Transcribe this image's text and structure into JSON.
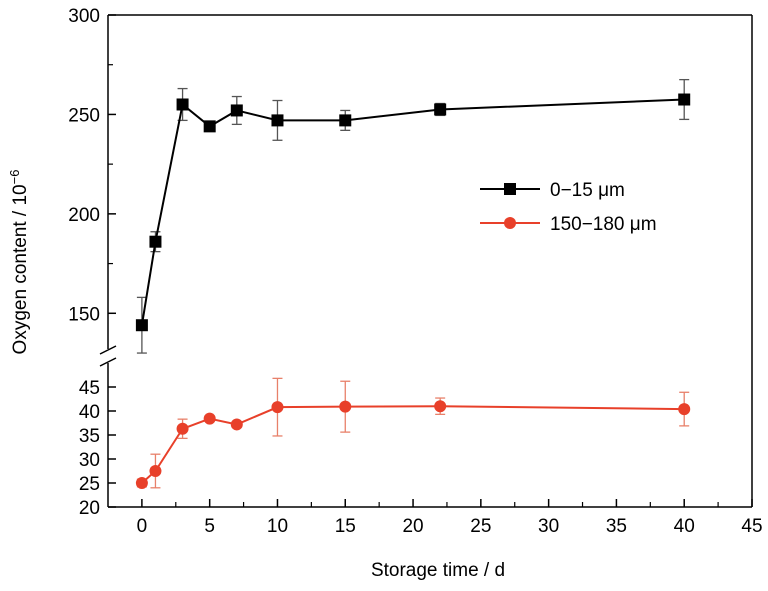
{
  "chart_data": {
    "type": "line",
    "xlabel": "Storage time / d",
    "ylabel": "Oxygen content / 10",
    "ylabel_exponent": "−6",
    "x_ticks": [
      "0",
      "5",
      "10",
      "15",
      "20",
      "25",
      "30",
      "35",
      "40",
      "45"
    ],
    "xlim": [
      -2.5,
      45
    ],
    "y_axis_break": true,
    "upper_panel": {
      "ylim": [
        125,
        300
      ],
      "y_ticks": [
        "150",
        "200",
        "250",
        "300"
      ]
    },
    "lower_panel": {
      "ylim": [
        20,
        50
      ],
      "y_ticks": [
        "20",
        "25",
        "30",
        "35",
        "40",
        "45"
      ]
    },
    "series": [
      {
        "name": "0−15 μm",
        "panel": "upper",
        "marker": "square",
        "color": "#000000",
        "x": [
          0,
          1,
          3,
          5,
          7,
          10,
          15,
          22,
          40
        ],
        "y": [
          144,
          186,
          255,
          244,
          252,
          247,
          247,
          252.5,
          257.5
        ],
        "error": [
          14,
          5,
          8,
          1,
          7,
          10,
          5,
          3,
          10
        ]
      },
      {
        "name": "150−180 μm",
        "panel": "lower",
        "marker": "circle",
        "color": "#e8402a",
        "x": [
          0,
          1,
          3,
          5,
          7,
          10,
          15,
          22,
          40
        ],
        "y": [
          25,
          27.5,
          36.3,
          38.4,
          37.2,
          40.8,
          40.9,
          41,
          40.4
        ],
        "error": [
          0.8,
          3.5,
          2,
          0.5,
          0.5,
          6,
          5.3,
          1.7,
          3.5
        ]
      }
    ],
    "legend_position": "right-middle of upper panel",
    "grid": false
  }
}
